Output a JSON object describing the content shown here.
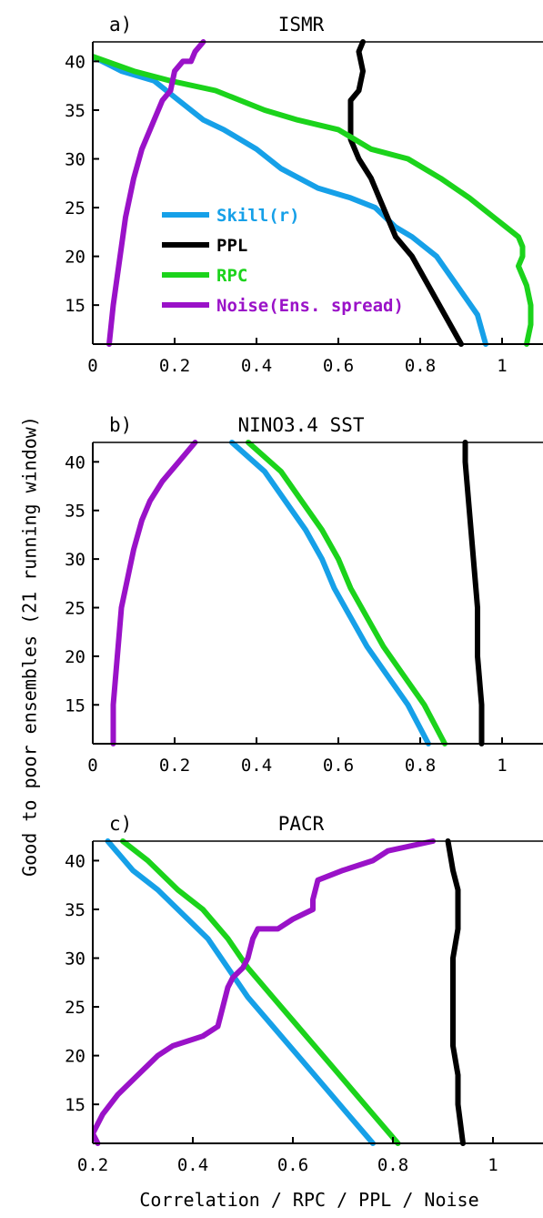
{
  "figure": {
    "ylabel": "Good to poor ensembles (21 running window)",
    "xlabel": "Correlation / RPC / PPL / Noise"
  },
  "legend": [
    {
      "label": "Skill(r)",
      "color": "#16a0e8"
    },
    {
      "label": "PPL",
      "color": "#000000"
    },
    {
      "label": "RPC",
      "color": "#1bd31b"
    },
    {
      "label": "Noise(Ens. spread)",
      "color": "#9a12c8"
    }
  ],
  "chart_data": [
    {
      "type": "line",
      "panel_label": "a)",
      "title": "ISMR",
      "xlim": [
        0,
        1.1
      ],
      "ylim": [
        11,
        42
      ],
      "xticks": [
        0,
        0.2,
        0.4,
        0.6,
        0.8,
        1
      ],
      "xtick_labels": [
        "0",
        "0.2",
        "0.4",
        "0.6",
        "0.8",
        "1"
      ],
      "yticks": [
        15,
        20,
        25,
        30,
        35,
        40
      ],
      "ytick_labels": [
        "15",
        "20",
        "25",
        "30",
        "35",
        "40"
      ],
      "series": [
        {
          "name": "Skill(r)",
          "color": "#16a0e8",
          "points": [
            [
              0.96,
              11
            ],
            [
              0.94,
              14
            ],
            [
              0.89,
              17
            ],
            [
              0.84,
              20
            ],
            [
              0.78,
              22
            ],
            [
              0.74,
              23
            ],
            [
              0.69,
              25
            ],
            [
              0.63,
              26
            ],
            [
              0.55,
              27
            ],
            [
              0.46,
              29
            ],
            [
              0.4,
              31
            ],
            [
              0.32,
              33
            ],
            [
              0.27,
              34
            ],
            [
              0.21,
              36
            ],
            [
              0.15,
              38
            ],
            [
              0.07,
              39
            ],
            [
              0.0,
              40.5
            ]
          ]
        },
        {
          "name": "PPL",
          "color": "#000000",
          "points": [
            [
              0.9,
              11
            ],
            [
              0.86,
              14
            ],
            [
              0.82,
              17
            ],
            [
              0.78,
              20
            ],
            [
              0.74,
              22
            ],
            [
              0.72,
              24
            ],
            [
              0.7,
              26
            ],
            [
              0.69,
              27
            ],
            [
              0.68,
              28
            ],
            [
              0.65,
              30
            ],
            [
              0.63,
              32
            ],
            [
              0.63,
              34
            ],
            [
              0.63,
              36
            ],
            [
              0.65,
              37
            ],
            [
              0.66,
              39
            ],
            [
              0.65,
              41
            ],
            [
              0.66,
              42
            ]
          ]
        },
        {
          "name": "RPC",
          "color": "#1bd31b",
          "points": [
            [
              1.06,
              11
            ],
            [
              1.07,
              13
            ],
            [
              1.07,
              15
            ],
            [
              1.06,
              17
            ],
            [
              1.04,
              19
            ],
            [
              1.05,
              20
            ],
            [
              1.05,
              21
            ],
            [
              1.04,
              22
            ],
            [
              1.01,
              23
            ],
            [
              0.98,
              24
            ],
            [
              0.92,
              26
            ],
            [
              0.85,
              28
            ],
            [
              0.77,
              30
            ],
            [
              0.68,
              31
            ],
            [
              0.6,
              33
            ],
            [
              0.5,
              34
            ],
            [
              0.42,
              35
            ],
            [
              0.3,
              37
            ],
            [
              0.19,
              38
            ],
            [
              0.1,
              39
            ],
            [
              0.0,
              40.5
            ]
          ]
        },
        {
          "name": "Noise(Ens. spread)",
          "color": "#9a12c8",
          "points": [
            [
              0.04,
              11
            ],
            [
              0.05,
              15
            ],
            [
              0.06,
              18
            ],
            [
              0.07,
              21
            ],
            [
              0.08,
              24
            ],
            [
              0.09,
              26
            ],
            [
              0.1,
              28
            ],
            [
              0.12,
              31
            ],
            [
              0.15,
              34
            ],
            [
              0.17,
              36
            ],
            [
              0.19,
              37
            ],
            [
              0.2,
              39
            ],
            [
              0.22,
              40
            ],
            [
              0.24,
              40
            ],
            [
              0.25,
              41
            ],
            [
              0.27,
              42
            ]
          ]
        }
      ]
    },
    {
      "type": "line",
      "panel_label": "b)",
      "title": "NINO3.4 SST",
      "xlim": [
        0,
        1.1
      ],
      "ylim": [
        11,
        42
      ],
      "xticks": [
        0,
        0.2,
        0.4,
        0.6,
        0.8,
        1
      ],
      "xtick_labels": [
        "0",
        "0.2",
        "0.4",
        "0.6",
        "0.8",
        "1"
      ],
      "yticks": [
        15,
        20,
        25,
        30,
        35,
        40
      ],
      "ytick_labels": [
        "15",
        "20",
        "25",
        "30",
        "35",
        "40"
      ],
      "series": [
        {
          "name": "Skill(r)",
          "color": "#16a0e8",
          "points": [
            [
              0.82,
              11
            ],
            [
              0.77,
              15
            ],
            [
              0.72,
              18
            ],
            [
              0.67,
              21
            ],
            [
              0.63,
              24
            ],
            [
              0.59,
              27
            ],
            [
              0.56,
              30
            ],
            [
              0.52,
              33
            ],
            [
              0.47,
              36
            ],
            [
              0.42,
              39
            ],
            [
              0.34,
              42
            ]
          ]
        },
        {
          "name": "PPL",
          "color": "#000000",
          "points": [
            [
              0.95,
              11
            ],
            [
              0.95,
              15
            ],
            [
              0.94,
              20
            ],
            [
              0.94,
              25
            ],
            [
              0.93,
              30
            ],
            [
              0.92,
              35
            ],
            [
              0.91,
              40
            ],
            [
              0.91,
              42
            ]
          ]
        },
        {
          "name": "RPC",
          "color": "#1bd31b",
          "points": [
            [
              0.86,
              11
            ],
            [
              0.81,
              15
            ],
            [
              0.76,
              18
            ],
            [
              0.71,
              21
            ],
            [
              0.67,
              24
            ],
            [
              0.63,
              27
            ],
            [
              0.6,
              30
            ],
            [
              0.56,
              33
            ],
            [
              0.51,
              36
            ],
            [
              0.46,
              39
            ],
            [
              0.38,
              42
            ]
          ]
        },
        {
          "name": "Noise(Ens. spread)",
          "color": "#9a12c8",
          "points": [
            [
              0.05,
              11
            ],
            [
              0.05,
              15
            ],
            [
              0.06,
              20
            ],
            [
              0.07,
              25
            ],
            [
              0.09,
              29
            ],
            [
              0.1,
              31
            ],
            [
              0.12,
              34
            ],
            [
              0.14,
              36
            ],
            [
              0.17,
              38
            ],
            [
              0.21,
              40
            ],
            [
              0.25,
              42
            ]
          ]
        }
      ]
    },
    {
      "type": "line",
      "panel_label": "c)",
      "title": "PACR",
      "xlim": [
        0.2,
        1.1
      ],
      "ylim": [
        11,
        42
      ],
      "xticks": [
        0.2,
        0.4,
        0.6,
        0.8,
        1
      ],
      "xtick_labels": [
        "0.2",
        "0.4",
        "0.6",
        "0.8",
        "1"
      ],
      "yticks": [
        15,
        20,
        25,
        30,
        35,
        40
      ],
      "ytick_labels": [
        "15",
        "20",
        "25",
        "30",
        "35",
        "40"
      ],
      "series": [
        {
          "name": "Skill(r)",
          "color": "#16a0e8",
          "points": [
            [
              0.76,
              11
            ],
            [
              0.71,
              14
            ],
            [
              0.66,
              17
            ],
            [
              0.61,
              20
            ],
            [
              0.56,
              23
            ],
            [
              0.51,
              26
            ],
            [
              0.47,
              29
            ],
            [
              0.43,
              32
            ],
            [
              0.39,
              34
            ],
            [
              0.33,
              37
            ],
            [
              0.28,
              39
            ],
            [
              0.23,
              42
            ]
          ]
        },
        {
          "name": "PPL",
          "color": "#000000",
          "points": [
            [
              0.94,
              11
            ],
            [
              0.93,
              15
            ],
            [
              0.93,
              18
            ],
            [
              0.92,
              21
            ],
            [
              0.92,
              23
            ],
            [
              0.92,
              26
            ],
            [
              0.92,
              30
            ],
            [
              0.93,
              33
            ],
            [
              0.93,
              35
            ],
            [
              0.93,
              37
            ],
            [
              0.92,
              39
            ],
            [
              0.91,
              42
            ]
          ]
        },
        {
          "name": "RPC",
          "color": "#1bd31b",
          "points": [
            [
              0.81,
              11
            ],
            [
              0.76,
              14
            ],
            [
              0.71,
              17
            ],
            [
              0.66,
              20
            ],
            [
              0.61,
              23
            ],
            [
              0.56,
              26
            ],
            [
              0.51,
              29
            ],
            [
              0.47,
              32
            ],
            [
              0.42,
              35
            ],
            [
              0.37,
              37
            ],
            [
              0.31,
              40
            ],
            [
              0.26,
              42
            ]
          ]
        },
        {
          "name": "Noise(Ens. spread)",
          "color": "#9a12c8",
          "points": [
            [
              0.21,
              11
            ],
            [
              0.2,
              12
            ],
            [
              0.22,
              14
            ],
            [
              0.25,
              16
            ],
            [
              0.29,
              18
            ],
            [
              0.31,
              19
            ],
            [
              0.33,
              20
            ],
            [
              0.36,
              21
            ],
            [
              0.42,
              22
            ],
            [
              0.45,
              23
            ],
            [
              0.46,
              25
            ],
            [
              0.47,
              27
            ],
            [
              0.48,
              28
            ],
            [
              0.5,
              29
            ],
            [
              0.51,
              30
            ],
            [
              0.52,
              32
            ],
            [
              0.53,
              33
            ],
            [
              0.57,
              33
            ],
            [
              0.6,
              34
            ],
            [
              0.64,
              35
            ],
            [
              0.64,
              36
            ],
            [
              0.65,
              38
            ],
            [
              0.7,
              39
            ],
            [
              0.76,
              40
            ],
            [
              0.79,
              41
            ],
            [
              0.88,
              42
            ]
          ]
        }
      ]
    }
  ]
}
